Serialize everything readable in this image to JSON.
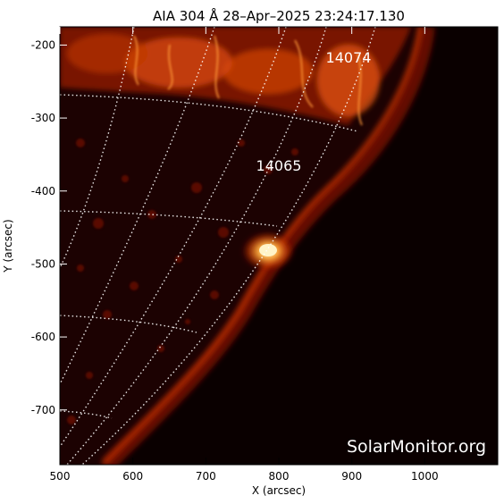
{
  "title": "AIA 304 Å 28–Apr–2025 23:24:17.130",
  "watermark": "SolarMonitor.org",
  "x_axis": {
    "label": "X (arcsec)",
    "range": [
      500,
      1100
    ],
    "ticks": [
      "500",
      "600",
      "700",
      "800",
      "900",
      "1000"
    ]
  },
  "y_axis": {
    "label": "Y (arcsec)",
    "range": [
      -775,
      -175
    ],
    "ticks": [
      "-200",
      "-300",
      "-400",
      "-500",
      "-600",
      "-700"
    ]
  },
  "active_regions": [
    {
      "label": "14074",
      "x": 895,
      "y": -220
    },
    {
      "label": "14065",
      "x": 800,
      "y": -393
    }
  ],
  "flare_brightening": {
    "x": 790,
    "y": -483
  },
  "colors": {
    "background": "#0a0000",
    "disk_dark": "#1a0000",
    "emission": "#ff6a00",
    "hot": "#fff0b0",
    "grid": "#ffffff"
  }
}
